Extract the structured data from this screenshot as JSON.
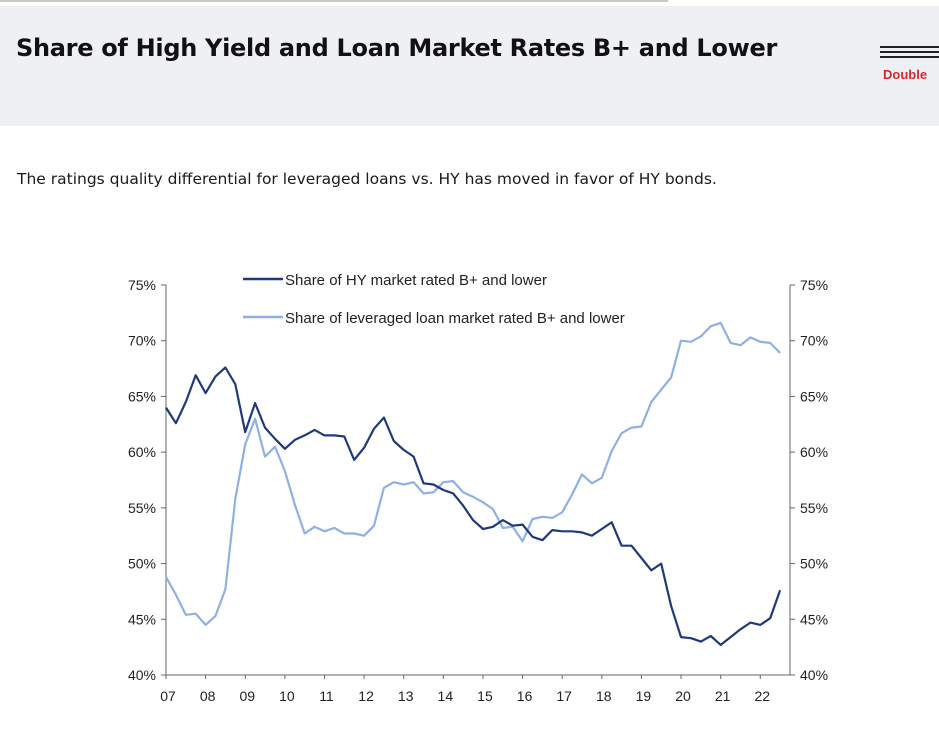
{
  "header": {
    "title": "Share of High Yield and Loan Market Rates B+ and Lower",
    "brand": "Double"
  },
  "subtitle": "The ratings quality differential for leveraged loans vs. HY has moved in favor of HY bonds.",
  "colors": {
    "hy": "#1f3a7a",
    "loan": "#8fb0e3",
    "brand": "#d9262e",
    "header_bg": "#eef0f3"
  },
  "chart_data": {
    "type": "line",
    "title": "",
    "xlabel": "",
    "ylabel": "",
    "x_ticks": [
      "07",
      "08",
      "09",
      "10",
      "11",
      "12",
      "13",
      "14",
      "15",
      "16",
      "17",
      "18",
      "19",
      "20",
      "21",
      "22"
    ],
    "xlim": [
      2007,
      2022.75
    ],
    "ylim": [
      40,
      75
    ],
    "y_ticks_left": [
      "75%",
      "70%",
      "65%",
      "60%",
      "55%",
      "50%",
      "45%",
      "40%"
    ],
    "y_ticks_right": [
      "75%",
      "70%",
      "65%",
      "60%",
      "55%",
      "50%",
      "45%",
      "40%"
    ],
    "grid": false,
    "legend_position": "top-center",
    "series": [
      {
        "name": "Share of HY market rated B+ and lower",
        "x": [
          2007.0,
          2007.25,
          2007.5,
          2007.75,
          2008.0,
          2008.25,
          2008.5,
          2008.75,
          2009.0,
          2009.25,
          2009.5,
          2009.75,
          2010.0,
          2010.25,
          2010.5,
          2010.75,
          2011.0,
          2011.25,
          2011.5,
          2011.75,
          2012.0,
          2012.25,
          2012.5,
          2012.75,
          2013.0,
          2013.25,
          2013.5,
          2013.75,
          2014.0,
          2014.25,
          2014.5,
          2014.75,
          2015.0,
          2015.25,
          2015.5,
          2015.75,
          2016.0,
          2016.25,
          2016.5,
          2016.75,
          2017.0,
          2017.25,
          2017.5,
          2017.75,
          2018.0,
          2018.25,
          2018.5,
          2018.75,
          2019.0,
          2019.25,
          2019.5,
          2019.75,
          2020.0,
          2020.25,
          2020.5,
          2020.75,
          2021.0,
          2021.25,
          2021.5,
          2021.75,
          2022.0,
          2022.25,
          2022.5
        ],
        "values": [
          64.0,
          62.6,
          64.5,
          66.9,
          65.3,
          66.8,
          67.6,
          66.1,
          61.8,
          64.4,
          62.2,
          61.2,
          60.3,
          61.1,
          61.5,
          62.0,
          61.5,
          61.5,
          61.4,
          59.3,
          60.4,
          62.1,
          63.1,
          61.0,
          60.2,
          59.6,
          57.2,
          57.1,
          56.6,
          56.3,
          55.2,
          53.9,
          53.1,
          53.3,
          53.9,
          53.4,
          53.5,
          52.4,
          52.1,
          53.0,
          52.9,
          52.9,
          52.8,
          52.5,
          53.1,
          53.7,
          51.6,
          51.6,
          50.5,
          49.4,
          50.0,
          46.2,
          43.4,
          43.3,
          43.0,
          43.5,
          42.7,
          43.4,
          44.1,
          44.7,
          44.5,
          45.1,
          47.6
        ]
      },
      {
        "name": "Share of leveraged loan market rated B+ and lower",
        "x": [
          2007.0,
          2007.25,
          2007.5,
          2007.75,
          2008.0,
          2008.25,
          2008.5,
          2008.75,
          2009.0,
          2009.25,
          2009.5,
          2009.75,
          2010.0,
          2010.25,
          2010.5,
          2010.75,
          2011.0,
          2011.25,
          2011.5,
          2011.75,
          2012.0,
          2012.25,
          2012.5,
          2012.75,
          2013.0,
          2013.25,
          2013.5,
          2013.75,
          2014.0,
          2014.25,
          2014.5,
          2014.75,
          2015.0,
          2015.25,
          2015.5,
          2015.75,
          2016.0,
          2016.25,
          2016.5,
          2016.75,
          2017.0,
          2017.25,
          2017.5,
          2017.75,
          2018.0,
          2018.25,
          2018.5,
          2018.75,
          2019.0,
          2019.25,
          2019.5,
          2019.75,
          2020.0,
          2020.25,
          2020.5,
          2020.75,
          2021.0,
          2021.25,
          2021.5,
          2021.75,
          2022.0,
          2022.25,
          2022.5
        ],
        "values": [
          48.8,
          47.2,
          45.4,
          45.5,
          44.5,
          45.3,
          47.7,
          55.8,
          60.7,
          63.0,
          59.6,
          60.5,
          58.3,
          55.3,
          52.7,
          53.3,
          52.9,
          53.2,
          52.7,
          52.7,
          52.5,
          53.4,
          56.8,
          57.3,
          57.1,
          57.3,
          56.3,
          56.4,
          57.3,
          57.4,
          56.4,
          56.0,
          55.5,
          54.9,
          53.2,
          53.3,
          52.0,
          54.0,
          54.2,
          54.1,
          54.6,
          56.2,
          58.0,
          57.2,
          57.7,
          60.1,
          61.7,
          62.2,
          62.3,
          64.5,
          65.6,
          66.7,
          70.0,
          69.9,
          70.4,
          71.3,
          71.6,
          69.8,
          69.6,
          70.3,
          69.9,
          69.8,
          68.9
        ]
      }
    ]
  }
}
